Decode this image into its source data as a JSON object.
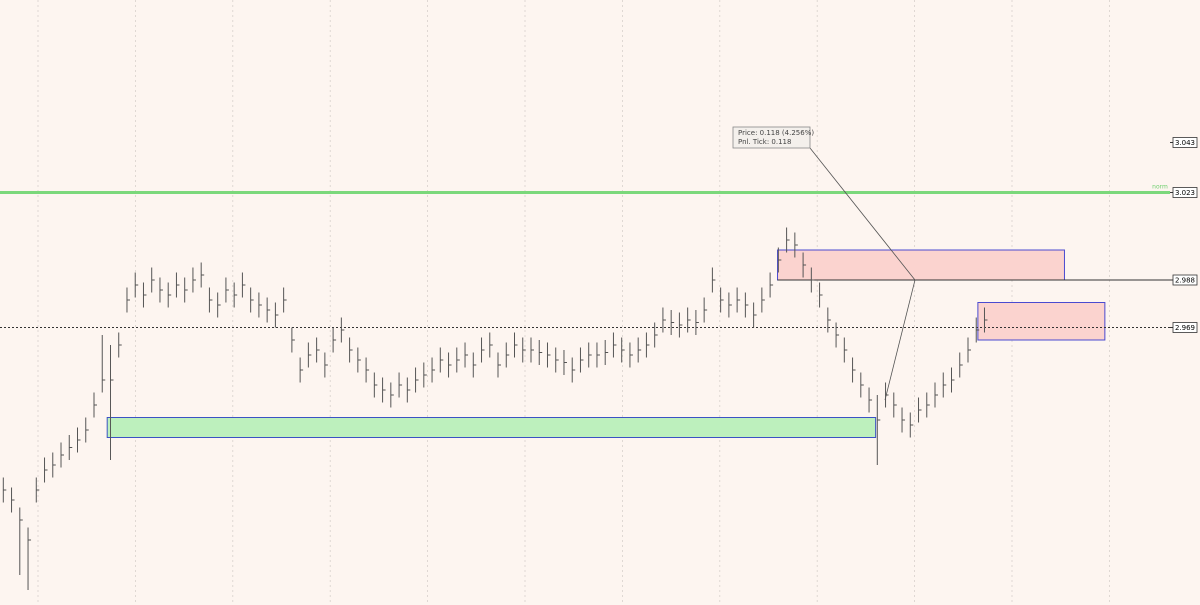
{
  "chart_data": {
    "type": "ohlc",
    "xlim": [
      -0.4,
      141.5
    ],
    "ylim": [
      2.858,
      3.1
    ],
    "yticks": [
      3.043,
      3.023,
      2.988,
      2.969
    ],
    "series": [
      {
        "color": "#555555",
        "close": [
          2.904,
          2.9,
          2.892,
          2.884,
          2.904,
          2.912,
          2.914,
          2.918,
          2.921,
          2.924,
          2.928,
          2.938,
          2.948,
          2.948,
          2.962,
          2.98,
          2.986,
          2.982,
          2.988,
          2.984,
          2.982,
          2.986,
          2.984,
          2.988,
          2.99,
          2.98,
          2.978,
          2.984,
          2.982,
          2.986,
          2.98,
          2.978,
          2.976,
          2.974,
          2.98,
          2.964,
          2.952,
          2.958,
          2.96,
          2.954,
          2.964,
          2.968,
          2.96,
          2.956,
          2.952,
          2.946,
          2.944,
          2.942,
          2.946,
          2.944,
          2.948,
          2.95,
          2.952,
          2.956,
          2.954,
          2.956,
          2.958,
          2.954,
          2.96,
          2.962,
          2.954,
          2.958,
          2.962,
          2.96,
          2.96,
          2.959,
          2.958,
          2.956,
          2.955,
          2.952,
          2.956,
          2.958,
          2.958,
          2.959,
          2.962,
          2.96,
          2.958,
          2.96,
          2.962,
          2.966,
          2.972,
          2.971,
          2.97,
          2.972,
          2.971,
          2.976,
          2.988,
          2.98,
          2.978,
          2.98,
          2.978,
          2.974,
          2.98,
          2.986,
          2.996,
          3.004,
          3.002,
          2.994,
          2.988,
          2.982,
          2.972,
          2.966,
          2.96,
          2.952,
          2.946,
          2.94,
          2.932,
          2.942,
          2.938,
          2.932,
          2.93,
          2.936,
          2.938,
          2.942,
          2.946,
          2.948,
          2.954,
          2.96,
          2.968,
          2.972
        ],
        "high": [
          2.909,
          2.905,
          2.897,
          2.889,
          2.909,
          2.917,
          2.919,
          2.923,
          2.926,
          2.929,
          2.933,
          2.943,
          2.966,
          2.962,
          2.967,
          2.985,
          2.991,
          2.987,
          2.993,
          2.989,
          2.987,
          2.991,
          2.989,
          2.993,
          2.995,
          2.985,
          2.983,
          2.989,
          2.987,
          2.991,
          2.985,
          2.983,
          2.981,
          2.979,
          2.985,
          2.969,
          2.957,
          2.963,
          2.965,
          2.959,
          2.969,
          2.973,
          2.965,
          2.961,
          2.957,
          2.951,
          2.949,
          2.947,
          2.951,
          2.949,
          2.953,
          2.955,
          2.957,
          2.961,
          2.959,
          2.961,
          2.963,
          2.959,
          2.965,
          2.967,
          2.959,
          2.963,
          2.967,
          2.965,
          2.965,
          2.964,
          2.963,
          2.961,
          2.96,
          2.957,
          2.961,
          2.963,
          2.963,
          2.964,
          2.967,
          2.965,
          2.963,
          2.965,
          2.967,
          2.971,
          2.977,
          2.976,
          2.975,
          2.977,
          2.976,
          2.981,
          2.993,
          2.985,
          2.983,
          2.985,
          2.983,
          2.979,
          2.985,
          2.991,
          3.001,
          3.009,
          3.007,
          2.999,
          2.993,
          2.987,
          2.977,
          2.971,
          2.965,
          2.957,
          2.951,
          2.945,
          2.942,
          2.947,
          2.943,
          2.937,
          2.935,
          2.941,
          2.943,
          2.947,
          2.951,
          2.953,
          2.959,
          2.965,
          2.973,
          2.977
        ],
        "low": [
          2.899,
          2.895,
          2.87,
          2.864,
          2.899,
          2.907,
          2.909,
          2.913,
          2.916,
          2.919,
          2.923,
          2.933,
          2.943,
          2.916,
          2.957,
          2.975,
          2.981,
          2.977,
          2.983,
          2.979,
          2.977,
          2.981,
          2.979,
          2.983,
          2.985,
          2.975,
          2.973,
          2.979,
          2.977,
          2.981,
          2.975,
          2.973,
          2.971,
          2.969,
          2.975,
          2.959,
          2.947,
          2.953,
          2.955,
          2.949,
          2.959,
          2.963,
          2.955,
          2.951,
          2.947,
          2.941,
          2.939,
          2.937,
          2.941,
          2.939,
          2.943,
          2.945,
          2.947,
          2.951,
          2.949,
          2.951,
          2.953,
          2.949,
          2.955,
          2.957,
          2.949,
          2.953,
          2.957,
          2.955,
          2.955,
          2.954,
          2.953,
          2.951,
          2.95,
          2.947,
          2.951,
          2.953,
          2.953,
          2.954,
          2.957,
          2.955,
          2.953,
          2.955,
          2.957,
          2.961,
          2.967,
          2.966,
          2.965,
          2.967,
          2.966,
          2.971,
          2.983,
          2.975,
          2.973,
          2.975,
          2.973,
          2.969,
          2.975,
          2.981,
          2.991,
          2.999,
          2.997,
          2.989,
          2.983,
          2.977,
          2.967,
          2.961,
          2.955,
          2.947,
          2.941,
          2.935,
          2.914,
          2.937,
          2.933,
          2.927,
          2.925,
          2.931,
          2.933,
          2.937,
          2.941,
          2.943,
          2.949,
          2.955,
          2.963,
          2.967
        ]
      }
    ],
    "zones": [
      {
        "x": [
          12.6,
          105.8
        ],
        "y": [
          2.925,
          2.933
        ],
        "color": "#bdf0bd",
        "border": "#3b52c4"
      },
      {
        "x": [
          93.9,
          128.7
        ],
        "y": [
          2.988,
          3.0
        ],
        "color": "#fbd3cf",
        "border": "#4a4ad0"
      },
      {
        "x": [
          118.2,
          133.6
        ],
        "y": [
          2.964,
          2.979
        ],
        "color": "#fbd3cf",
        "border": "#4a4ad0"
      }
    ],
    "hlines": [
      {
        "value": 3.023,
        "color": "#7bd87b",
        "width": 3
      },
      {
        "value": 2.988,
        "color": "#333333",
        "width": 1,
        "from": 93.9
      },
      {
        "value": 2.969,
        "color": "#333333",
        "width": 1,
        "dashed": true
      }
    ],
    "line_label": "norm",
    "annotation": [
      "Price:    0.118 (4.256%)",
      "Pnl. Tick: 0.118"
    ]
  }
}
